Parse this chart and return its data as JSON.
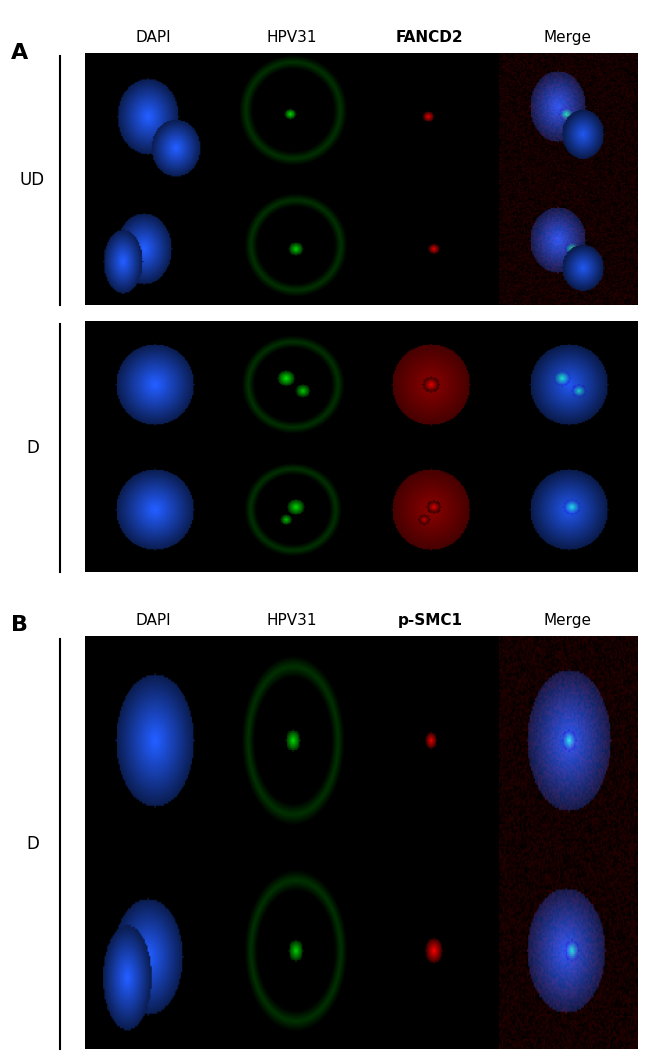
{
  "panel_A_label": "A",
  "panel_B_label": "B",
  "col_headers_A": [
    "DAPI",
    "HPV31",
    "FANCD2",
    "Merge"
  ],
  "col_headers_B": [
    "DAPI",
    "HPV31",
    "p-SMC1",
    "Merge"
  ],
  "bold_col_A": 2,
  "bold_col_B": 2,
  "row_labels_A": [
    "UD",
    "D"
  ],
  "row_labels_B": [
    "D"
  ],
  "background_color": "#ffffff",
  "panel_bg": "#000000",
  "label_fontsize": 14,
  "header_fontsize": 11,
  "row_label_fontsize": 12,
  "figure_width": 6.5,
  "figure_height": 10.6
}
